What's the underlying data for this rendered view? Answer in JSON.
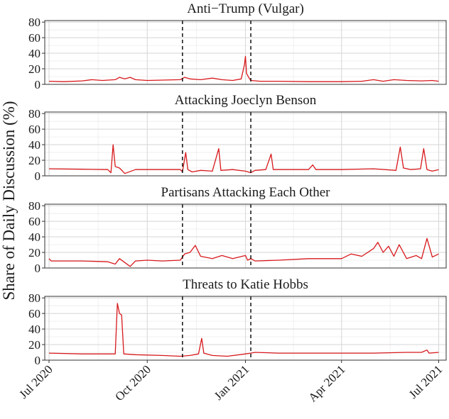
{
  "chart_data": {
    "type": "line",
    "ylabel": "Share of Daily Discussion (%)",
    "xlabel": "",
    "series_color": "#d7191c",
    "x_range": [
      "2020-06-27",
      "2021-07-08"
    ],
    "x_ticks": [
      {
        "label": "Jul 2020",
        "date": "2020-07-01"
      },
      {
        "label": "Oct 2020",
        "date": "2020-10-01"
      },
      {
        "label": "Jan 2021",
        "date": "2021-01-01"
      },
      {
        "label": "Apr 2021",
        "date": "2021-04-01"
      },
      {
        "label": "Jul 2021",
        "date": "2021-07-01"
      }
    ],
    "y_ticks": [
      0,
      20,
      40,
      60,
      80
    ],
    "ylim": [
      0,
      82
    ],
    "event_lines": [
      "2020-11-03",
      "2021-01-06"
    ],
    "grid": true,
    "legend": "none",
    "panels": [
      {
        "title": "Anti−Trump (Vulgar)",
        "points": [
          [
            "2020-07-01",
            4
          ],
          [
            "2020-07-15",
            3.5
          ],
          [
            "2020-08-01",
            4.5
          ],
          [
            "2020-08-10",
            6
          ],
          [
            "2020-08-20",
            5
          ],
          [
            "2020-09-01",
            6
          ],
          [
            "2020-09-05",
            9
          ],
          [
            "2020-09-10",
            7
          ],
          [
            "2020-09-15",
            9
          ],
          [
            "2020-09-20",
            6
          ],
          [
            "2020-10-01",
            5
          ],
          [
            "2020-10-15",
            5.5
          ],
          [
            "2020-11-01",
            6
          ],
          [
            "2020-11-05",
            9
          ],
          [
            "2020-11-10",
            7
          ],
          [
            "2020-11-20",
            6
          ],
          [
            "2020-12-01",
            8
          ],
          [
            "2020-12-10",
            6
          ],
          [
            "2020-12-20",
            5
          ],
          [
            "2020-12-28",
            7
          ],
          [
            "2020-12-31",
            25
          ],
          [
            "2021-01-01",
            36
          ],
          [
            "2021-01-02",
            14
          ],
          [
            "2021-01-04",
            9
          ],
          [
            "2021-01-06",
            5
          ],
          [
            "2021-01-15",
            4
          ],
          [
            "2021-02-01",
            4
          ],
          [
            "2021-03-01",
            3.5
          ],
          [
            "2021-04-01",
            3.5
          ],
          [
            "2021-04-20",
            4
          ],
          [
            "2021-05-01",
            6
          ],
          [
            "2021-05-10",
            4
          ],
          [
            "2021-05-20",
            6
          ],
          [
            "2021-06-01",
            5
          ],
          [
            "2021-06-15",
            4.5
          ],
          [
            "2021-06-25",
            5
          ],
          [
            "2021-07-01",
            4
          ]
        ]
      },
      {
        "title": "Attacking Joeclyn Benson",
        "points": [
          [
            "2020-07-01",
            9
          ],
          [
            "2020-08-01",
            8.5
          ],
          [
            "2020-08-25",
            8
          ],
          [
            "2020-08-28",
            4
          ],
          [
            "2020-08-30",
            40
          ],
          [
            "2020-09-01",
            12
          ],
          [
            "2020-09-05",
            10
          ],
          [
            "2020-09-10",
            3
          ],
          [
            "2020-09-20",
            8
          ],
          [
            "2020-10-15",
            8
          ],
          [
            "2020-11-01",
            8
          ],
          [
            "2020-11-03",
            5
          ],
          [
            "2020-11-06",
            30
          ],
          [
            "2020-11-08",
            8
          ],
          [
            "2020-11-12",
            5
          ],
          [
            "2020-11-20",
            7
          ],
          [
            "2020-12-01",
            6
          ],
          [
            "2020-12-07",
            35
          ],
          [
            "2020-12-09",
            7
          ],
          [
            "2020-12-20",
            8
          ],
          [
            "2021-01-01",
            6
          ],
          [
            "2021-01-06",
            4
          ],
          [
            "2021-01-10",
            7
          ],
          [
            "2021-01-20",
            8
          ],
          [
            "2021-01-25",
            28
          ],
          [
            "2021-01-27",
            8
          ],
          [
            "2021-02-15",
            8
          ],
          [
            "2021-03-01",
            8
          ],
          [
            "2021-03-05",
            14
          ],
          [
            "2021-03-08",
            8
          ],
          [
            "2021-04-01",
            8
          ],
          [
            "2021-05-01",
            9
          ],
          [
            "2021-05-22",
            7
          ],
          [
            "2021-05-26",
            37
          ],
          [
            "2021-05-29",
            10
          ],
          [
            "2021-06-05",
            8
          ],
          [
            "2021-06-14",
            9
          ],
          [
            "2021-06-17",
            35
          ],
          [
            "2021-06-20",
            8
          ],
          [
            "2021-06-25",
            6
          ],
          [
            "2021-07-01",
            8
          ]
        ]
      },
      {
        "title": "Partisans Attacking Each Other",
        "points": [
          [
            "2020-07-01",
            12
          ],
          [
            "2020-07-03",
            9
          ],
          [
            "2020-08-01",
            9
          ],
          [
            "2020-08-25",
            8
          ],
          [
            "2020-09-01",
            5
          ],
          [
            "2020-09-05",
            12
          ],
          [
            "2020-09-15",
            2
          ],
          [
            "2020-09-20",
            9
          ],
          [
            "2020-10-01",
            10
          ],
          [
            "2020-10-15",
            9
          ],
          [
            "2020-11-01",
            10
          ],
          [
            "2020-11-05",
            18
          ],
          [
            "2020-11-10",
            20
          ],
          [
            "2020-11-15",
            29
          ],
          [
            "2020-11-20",
            15
          ],
          [
            "2020-12-01",
            12
          ],
          [
            "2020-12-10",
            16
          ],
          [
            "2020-12-20",
            12
          ],
          [
            "2021-01-01",
            16
          ],
          [
            "2021-01-03",
            10
          ],
          [
            "2021-01-06",
            12
          ],
          [
            "2021-01-10",
            9
          ],
          [
            "2021-02-01",
            10
          ],
          [
            "2021-03-01",
            12
          ],
          [
            "2021-04-01",
            12
          ],
          [
            "2021-04-10",
            18
          ],
          [
            "2021-04-20",
            15
          ],
          [
            "2021-05-01",
            25
          ],
          [
            "2021-05-05",
            33
          ],
          [
            "2021-05-10",
            20
          ],
          [
            "2021-05-15",
            28
          ],
          [
            "2021-05-20",
            15
          ],
          [
            "2021-05-25",
            30
          ],
          [
            "2021-06-01",
            12
          ],
          [
            "2021-06-10",
            16
          ],
          [
            "2021-06-15",
            12
          ],
          [
            "2021-06-20",
            38
          ],
          [
            "2021-06-25",
            14
          ],
          [
            "2021-07-01",
            18
          ]
        ]
      },
      {
        "title": "Threats to Katie Hobbs",
        "points": [
          [
            "2020-07-01",
            9
          ],
          [
            "2020-08-01",
            8
          ],
          [
            "2020-08-25",
            8
          ],
          [
            "2020-09-01",
            8
          ],
          [
            "2020-09-03",
            73
          ],
          [
            "2020-09-05",
            60
          ],
          [
            "2020-09-07",
            58
          ],
          [
            "2020-09-09",
            8
          ],
          [
            "2020-09-20",
            7
          ],
          [
            "2020-10-15",
            6
          ],
          [
            "2020-11-01",
            5
          ],
          [
            "2020-11-10",
            6
          ],
          [
            "2020-11-18",
            8
          ],
          [
            "2020-11-21",
            28
          ],
          [
            "2020-11-23",
            9
          ],
          [
            "2020-12-01",
            6
          ],
          [
            "2020-12-15",
            5
          ],
          [
            "2021-01-01",
            8
          ],
          [
            "2021-01-06",
            9
          ],
          [
            "2021-01-10",
            10
          ],
          [
            "2021-02-01",
            9
          ],
          [
            "2021-03-01",
            9
          ],
          [
            "2021-04-01",
            9
          ],
          [
            "2021-05-01",
            9
          ],
          [
            "2021-06-01",
            10
          ],
          [
            "2021-06-15",
            10
          ],
          [
            "2021-06-20",
            13
          ],
          [
            "2021-06-22",
            9
          ],
          [
            "2021-07-01",
            10
          ]
        ]
      }
    ]
  }
}
